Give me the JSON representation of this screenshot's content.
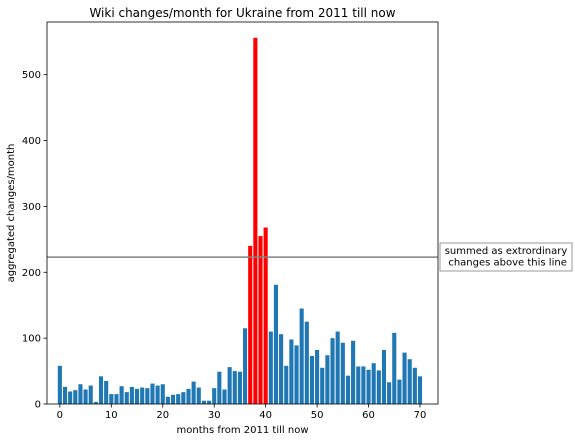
{
  "chart_data": {
    "type": "bar",
    "title": "Wiki changes/month for Ukraine from 2011 till now",
    "xlabel": "months from 2011 till now",
    "ylabel": "aggregated changes/month",
    "xlim": [
      -2.5,
      73.5
    ],
    "ylim": [
      0,
      580
    ],
    "xticks": [
      0,
      10,
      20,
      30,
      40,
      50,
      60,
      70
    ],
    "yticks": [
      0,
      100,
      200,
      300,
      400,
      500
    ],
    "x": [
      0,
      1,
      2,
      3,
      4,
      5,
      6,
      7,
      8,
      9,
      10,
      11,
      12,
      13,
      14,
      15,
      16,
      17,
      18,
      19,
      20,
      21,
      22,
      23,
      24,
      25,
      26,
      27,
      28,
      29,
      30,
      31,
      32,
      33,
      34,
      35,
      36,
      37,
      38,
      39,
      40,
      41,
      42,
      43,
      44,
      45,
      46,
      47,
      48,
      49,
      50,
      51,
      52,
      53,
      54,
      55,
      56,
      57,
      58,
      59,
      60,
      61,
      62,
      63,
      64,
      65,
      66,
      67,
      68,
      69,
      70
    ],
    "values": [
      58,
      26,
      19,
      21,
      30,
      22,
      28,
      3,
      42,
      35,
      15,
      15,
      27,
      18,
      26,
      23,
      25,
      24,
      31,
      28,
      30,
      11,
      14,
      15,
      18,
      23,
      34,
      25,
      5,
      5,
      24,
      49,
      22,
      56,
      50,
      49,
      115,
      240,
      556,
      255,
      268,
      110,
      181,
      106,
      58,
      98,
      89,
      145,
      125,
      73,
      82,
      55,
      74,
      100,
      110,
      93,
      43,
      96,
      57,
      57,
      52,
      62,
      51,
      82,
      33,
      108,
      37,
      78,
      68,
      55,
      42
    ],
    "highlight_indices": [
      37,
      38,
      39,
      40
    ],
    "colors": {
      "normal": "#1f77b4",
      "highlight": "#ff0000",
      "threshold": "#808080"
    },
    "threshold": 223,
    "annotation": "summed as extrordinary\n changes above this line",
    "grid": false
  }
}
